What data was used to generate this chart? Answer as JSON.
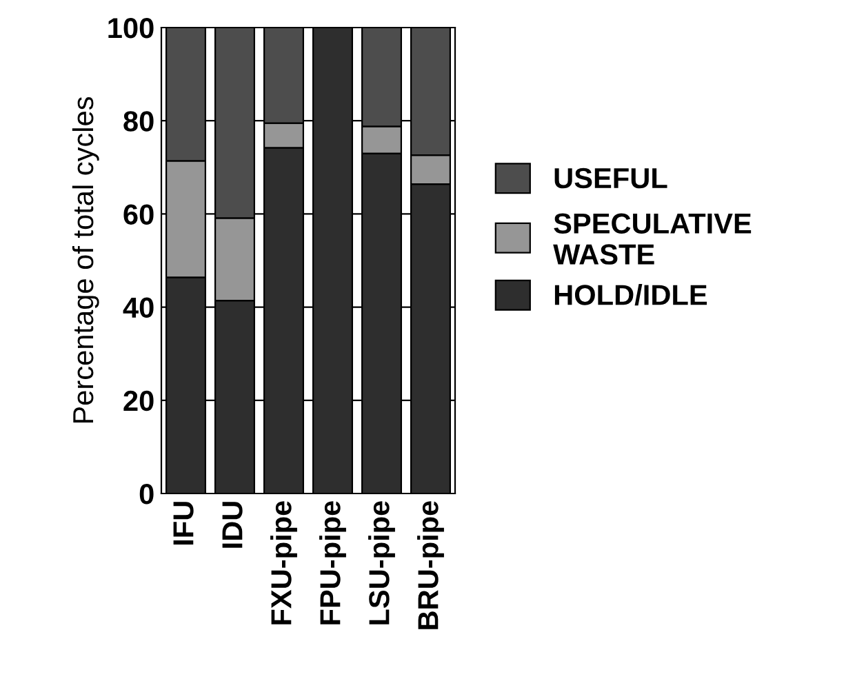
{
  "chart_data": {
    "type": "bar",
    "stacked": true,
    "ylabel": "Percentage of total cycles",
    "categories": [
      "IFU",
      "IDU",
      "FXU-pipe",
      "FPU-pipe",
      "LSU-pipe",
      "BRU-pipe"
    ],
    "series": [
      {
        "name": "HOLD/IDLE",
        "color": "#2e2e2e",
        "values": [
          46.4,
          41.4,
          74.2,
          100,
          73,
          66.4
        ]
      },
      {
        "name": "SPECULATIVE WASTE",
        "color": "#969696",
        "values": [
          25,
          17.7,
          5.3,
          0,
          5.8,
          6.2
        ]
      },
      {
        "name": "USEFUL",
        "color": "#4d4d4d",
        "values": [
          28.6,
          40.9,
          20.5,
          0,
          21.2,
          27.4
        ]
      }
    ],
    "ylim": [
      0,
      100
    ],
    "yticks": [
      0,
      20,
      40,
      60,
      80,
      100
    ],
    "grid": "y",
    "legend": "right"
  }
}
